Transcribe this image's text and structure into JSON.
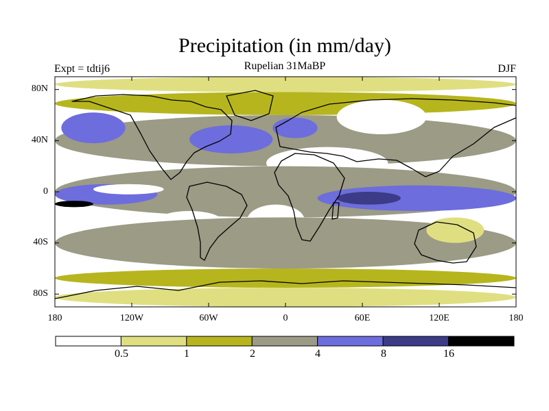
{
  "chart_data": {
    "type": "heatmap",
    "title": "Precipitation (in mm/day)",
    "subtitle": "Rupelian  31MaBP",
    "left_label": "Expt = tdtij6",
    "right_label": "DJF",
    "y_ticks": [
      "80N",
      "40N",
      "0",
      "40S",
      "80S"
    ],
    "y_tick_values": [
      80,
      40,
      0,
      -40,
      -80
    ],
    "x_ticks": [
      "180",
      "120W",
      "60W",
      "0",
      "60E",
      "120E",
      "180"
    ],
    "x_tick_values": [
      -180,
      -120,
      -60,
      0,
      60,
      120,
      180
    ],
    "xlim": [
      -180,
      180
    ],
    "ylim": [
      -90,
      90
    ],
    "colorbar": {
      "levels": [
        "0.5",
        "1",
        "2",
        "4",
        "8",
        "16"
      ],
      "bins": [
        {
          "range": "<0.5",
          "color": "#ffffff"
        },
        {
          "range": "0.5-1",
          "color": "#dfdf82"
        },
        {
          "range": "1-2",
          "color": "#b6b51e"
        },
        {
          "range": "2-4",
          "color": "#9b9b86"
        },
        {
          "range": "4-8",
          "color": "#6d6ddd"
        },
        {
          "range": "8-16",
          "color": "#3b3b87"
        },
        {
          "range": ">16",
          "color": "#000000"
        }
      ]
    },
    "regions": [
      {
        "name": "arctic",
        "bin": 1,
        "lon": [
          -180,
          180
        ],
        "lat": [
          78,
          90
        ]
      },
      {
        "name": "north-60s",
        "bin": 2,
        "lon": [
          -180,
          180
        ],
        "lat": [
          60,
          78
        ]
      },
      {
        "name": "north-mid",
        "bin": 3,
        "lon": [
          -180,
          180
        ],
        "lat": [
          20,
          60
        ]
      },
      {
        "name": "north-pacific-storm",
        "bin": 4,
        "lon": [
          -175,
          -125
        ],
        "lat": [
          38,
          62
        ]
      },
      {
        "name": "north-atlantic-storm",
        "bin": 4,
        "lon": [
          -75,
          -10
        ],
        "lat": [
          30,
          52
        ]
      },
      {
        "name": "europe-wet",
        "bin": 4,
        "lon": [
          -10,
          25
        ],
        "lat": [
          42,
          58
        ]
      },
      {
        "name": "asia-dry",
        "bin": 0,
        "lon": [
          40,
          110
        ],
        "lat": [
          45,
          72
        ]
      },
      {
        "name": "sahara-desert",
        "bin": 0,
        "lon": [
          -15,
          80
        ],
        "lat": [
          10,
          35
        ]
      },
      {
        "name": "tropics",
        "bin": 3,
        "lon": [
          -180,
          180
        ],
        "lat": [
          -20,
          20
        ]
      },
      {
        "name": "itcz-pacific",
        "bin": 4,
        "lon": [
          -180,
          -100
        ],
        "lat": [
          -10,
          6
        ]
      },
      {
        "name": "itcz-indian",
        "bin": 4,
        "lon": [
          25,
          180
        ],
        "lat": [
          -15,
          5
        ]
      },
      {
        "name": "itcz-core",
        "bin": 5,
        "lon": [
          40,
          90
        ],
        "lat": [
          -10,
          0
        ]
      },
      {
        "name": "east-pacific-max",
        "bin": 6,
        "lon": [
          -180,
          -150
        ],
        "lat": [
          -12,
          -7
        ]
      },
      {
        "name": "pacific-dry-tongue",
        "bin": 0,
        "lon": [
          -150,
          -95
        ],
        "lat": [
          -2,
          6
        ]
      },
      {
        "name": "south-america-west-dry",
        "bin": 0,
        "lon": [
          -100,
          -50
        ],
        "lat": [
          -30,
          -15
        ]
      },
      {
        "name": "south-atlantic-dry",
        "bin": 0,
        "lon": [
          -30,
          15
        ],
        "lat": [
          -35,
          -10
        ]
      },
      {
        "name": "south-mid",
        "bin": 3,
        "lon": [
          -180,
          180
        ],
        "lat": [
          -60,
          -20
        ]
      },
      {
        "name": "australia-dry",
        "bin": 1,
        "lon": [
          110,
          155
        ],
        "lat": [
          -40,
          -20
        ]
      },
      {
        "name": "south-60s",
        "bin": 2,
        "lon": [
          -180,
          180
        ],
        "lat": [
          -75,
          -60
        ]
      },
      {
        "name": "antarctic",
        "bin": 1,
        "lon": [
          -180,
          180
        ],
        "lat": [
          -90,
          -75
        ]
      }
    ]
  }
}
